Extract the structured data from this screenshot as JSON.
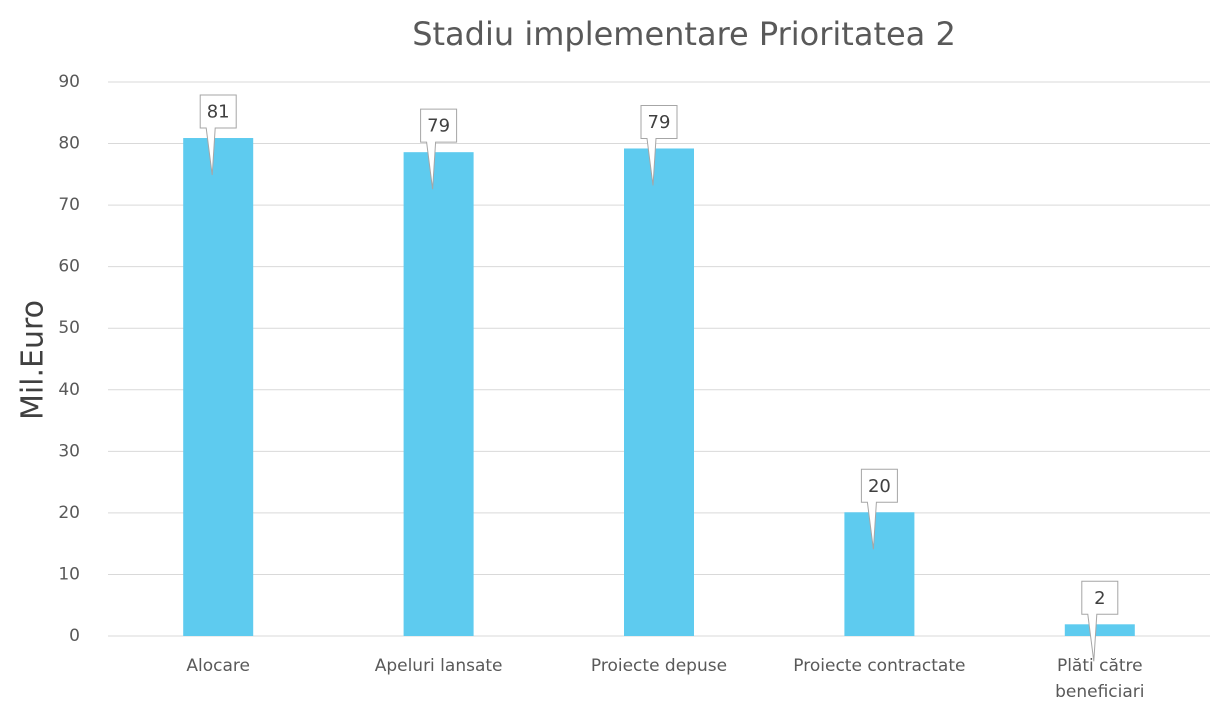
{
  "chart_data": {
    "type": "bar",
    "title": "Stadiu implementare Prioritatea 2",
    "y_label": "Mil.Euro",
    "categories": [
      "Alocare",
      "Apeluri lansate",
      "Proiecte depuse",
      "Proiecte contractate",
      "Plăti către\nbeneficiari"
    ],
    "values": [
      80.9,
      78.6,
      79.2,
      20.1,
      1.9
    ],
    "value_labels": [
      "81",
      "79",
      "79",
      "20",
      "2"
    ],
    "color": "#5ecbef",
    "ylim": [
      0,
      90
    ],
    "yticks": [
      0,
      10,
      20,
      30,
      40,
      50,
      60,
      70,
      80,
      90
    ],
    "grid": true
  }
}
